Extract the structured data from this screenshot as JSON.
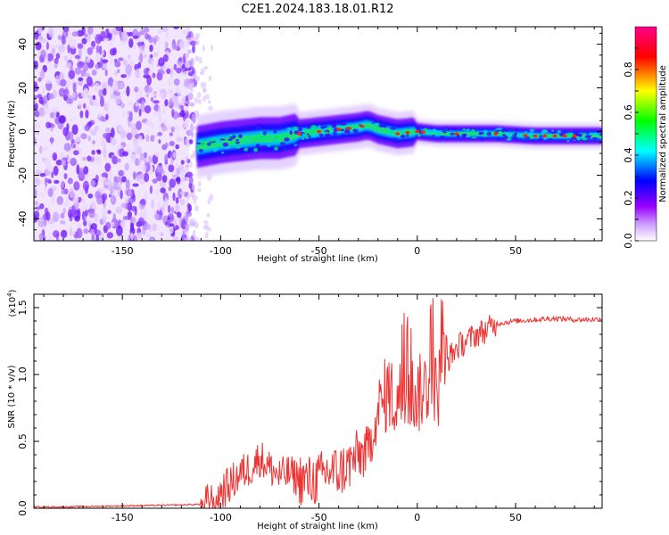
{
  "figure": {
    "title": "C2E1.2024.183.18.01.R12"
  },
  "chart_data": [
    {
      "type": "heatmap",
      "xlabel": "Height of straight line (km)",
      "ylabel": "Frequency (Hz)",
      "xlim": [
        -195,
        94
      ],
      "ylim": [
        -50,
        48
      ],
      "x_ticks": [
        "-150",
        "-100",
        "-50",
        "0",
        "50"
      ],
      "y_ticks": [
        "-40",
        "-20",
        "0",
        "20",
        "40"
      ],
      "colorbar": {
        "label": "Normalized spectral amplitude",
        "range": [
          0.0,
          1.0
        ],
        "ticks": [
          "0.0",
          "0.2",
          "0.4",
          "0.6",
          "0.8"
        ],
        "colormap": [
          "#ffffff",
          "#9900ff",
          "#0000ff",
          "#00ffff",
          "#00ff00",
          "#ffff00",
          "#ff0000",
          "#ff0088"
        ]
      },
      "ridge": {
        "x": [
          -112,
          -100,
          -90,
          -80,
          -70,
          -60,
          -50,
          -40,
          -30,
          -25,
          -20,
          -10,
          0,
          10,
          20,
          40,
          60,
          80,
          94
        ],
        "y": [
          -7,
          -5,
          -4,
          -3,
          -3,
          -1,
          0,
          1,
          2,
          3,
          1,
          -1,
          0,
          -1,
          -1,
          -1,
          -2,
          -2,
          -2
        ]
      },
      "grid": false,
      "legend": "colorbar-right"
    },
    {
      "type": "line",
      "xlabel": "Height of straight line (km)",
      "ylabel": "SNR (10 * v/v)",
      "y_multiplier": "(x10",
      "y_multiplier_exp": "4",
      "y_multiplier_close": ")",
      "xlim": [
        -195,
        94
      ],
      "ylim": [
        0,
        1.6
      ],
      "x_ticks": [
        "-150",
        "-100",
        "-50",
        "0",
        "50"
      ],
      "y_ticks": [
        "0.0",
        "0.5",
        "1.0",
        "1.5"
      ],
      "color": "#ee3333",
      "series": [
        {
          "x": [
            -195,
            -180,
            -160,
            -140,
            -120,
            -110,
            -105,
            -100,
            -95,
            -90,
            -85,
            -80,
            -75,
            -70,
            -65,
            -60,
            -55,
            -50,
            -45,
            -40,
            -35,
            -30,
            -25,
            -22,
            -20,
            -18,
            -15,
            -12,
            -10,
            -5,
            0,
            5,
            8,
            10,
            12,
            15,
            20,
            25,
            30,
            35,
            40,
            50,
            60,
            70,
            80,
            90,
            94
          ],
          "y": [
            0.01,
            0.01,
            0.015,
            0.02,
            0.025,
            0.03,
            0.05,
            0.12,
            0.18,
            0.26,
            0.3,
            0.38,
            0.3,
            0.24,
            0.26,
            0.22,
            0.2,
            0.22,
            0.28,
            0.27,
            0.32,
            0.4,
            0.42,
            0.62,
            0.7,
            0.75,
            0.9,
            0.8,
            0.82,
            0.88,
            0.84,
            0.92,
            1.0,
            0.8,
            1.05,
            1.1,
            1.2,
            1.25,
            1.3,
            1.33,
            1.38,
            1.4,
            1.41,
            1.42,
            1.41,
            1.41,
            1.42
          ]
        }
      ],
      "grid": false
    }
  ]
}
